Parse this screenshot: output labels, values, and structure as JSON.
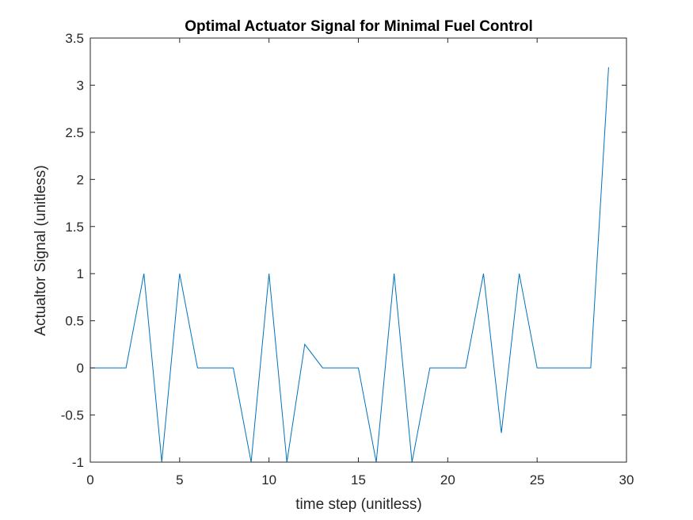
{
  "chart_data": {
    "type": "line",
    "title": "Optimal Actuator Signal for Minimal Fuel Control",
    "xlabel": "time step (unitless)",
    "ylabel": "Actualtor Signal (unitless)",
    "xlim": [
      0,
      30
    ],
    "ylim": [
      -1,
      3.5
    ],
    "xticks": [
      0,
      5,
      10,
      15,
      20,
      25,
      30
    ],
    "yticks": [
      -1,
      -0.5,
      0,
      0.5,
      1,
      1.5,
      2,
      2.5,
      3,
      3.5
    ],
    "xtick_labels": [
      "0",
      "5",
      "10",
      "15",
      "20",
      "25",
      "30"
    ],
    "ytick_labels": [
      "-1",
      "-0.5",
      "0",
      "0.5",
      "1",
      "1.5",
      "2",
      "2.5",
      "3",
      "3.5"
    ],
    "grid": false,
    "series": [
      {
        "color": "#0072BD",
        "x": [
          0,
          1,
          2,
          3,
          4,
          5,
          6,
          7,
          8,
          9,
          10,
          11,
          12,
          13,
          14,
          15,
          16,
          17,
          18,
          19,
          20,
          21,
          22,
          23,
          24,
          25,
          26,
          27,
          28,
          29
        ],
        "y": [
          0,
          0,
          0,
          1,
          -1,
          1,
          0,
          0,
          0,
          -1,
          1,
          -1,
          0.25,
          0,
          0,
          0,
          -1,
          1,
          -1,
          0,
          0,
          0,
          1,
          -0.69,
          1,
          0,
          0,
          0,
          0,
          3.19
        ]
      }
    ]
  }
}
